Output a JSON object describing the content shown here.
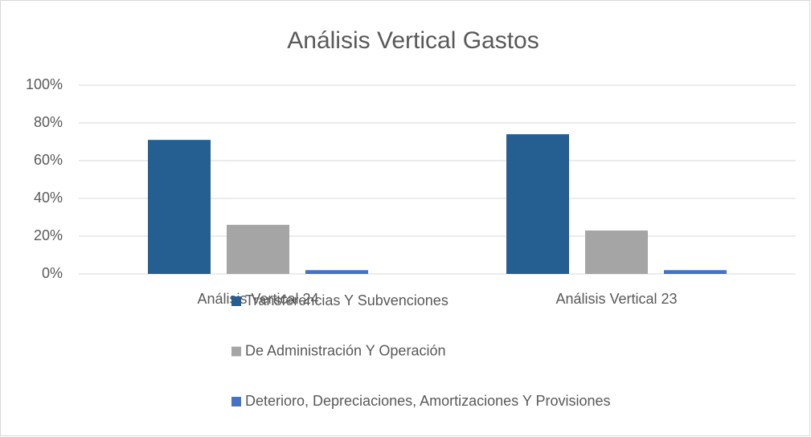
{
  "chart_data": {
    "type": "bar",
    "title": "Análisis Vertical Gastos",
    "categories": [
      "Análisis Vertical 24",
      "Análisis Vertical 23"
    ],
    "series": [
      {
        "name": "Transferencias Y Subvenciones",
        "color": "#255e91",
        "values": [
          71,
          74
        ]
      },
      {
        "name": "De Administración Y Operación",
        "color": "#a5a5a5",
        "values": [
          26,
          23
        ]
      },
      {
        "name": "Deterioro, Depreciaciones, Amortizaciones Y Provisiones",
        "color": "#4472c4",
        "values": [
          2,
          2
        ]
      }
    ],
    "ylim": [
      0,
      100
    ],
    "yticks": [
      {
        "value": 0,
        "label": "0%"
      },
      {
        "value": 20,
        "label": "20%"
      },
      {
        "value": 40,
        "label": "40%"
      },
      {
        "value": 60,
        "label": "60%"
      },
      {
        "value": 80,
        "label": "80%"
      },
      {
        "value": 100,
        "label": "100%"
      }
    ],
    "grid": true,
    "legend": "bottom"
  }
}
